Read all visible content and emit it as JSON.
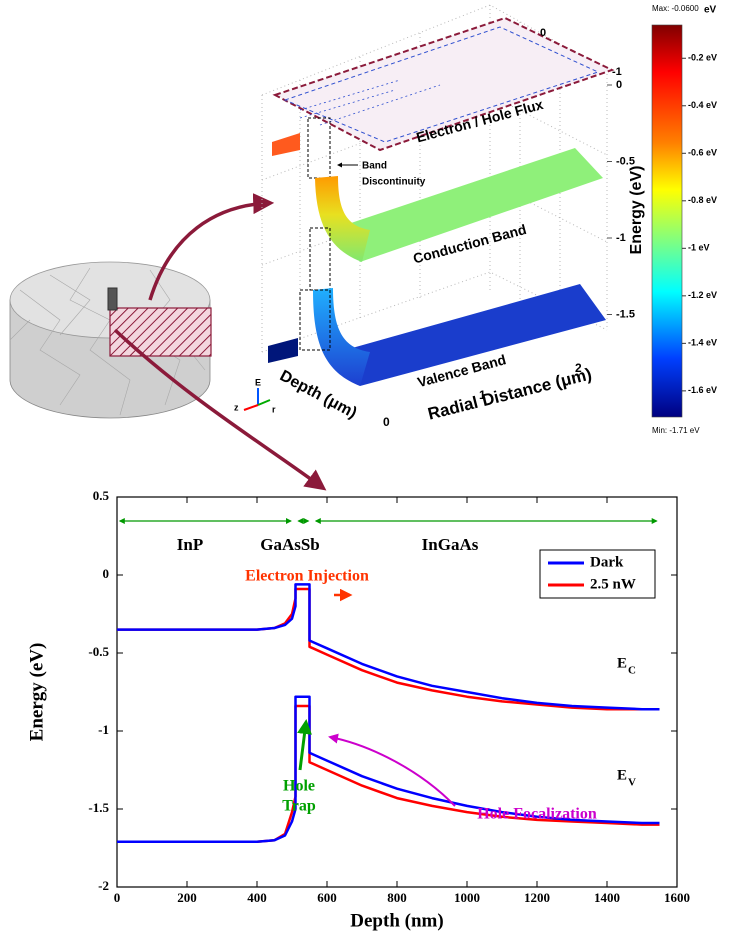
{
  "chart_data": [
    {
      "type": "surface",
      "annotations": {
        "flux": "Electron / Hole Flux",
        "discontinuity": [
          "Band",
          "Discontinuity"
        ],
        "conduction": "Conduction Band",
        "valence": "Valence Band"
      },
      "zlabel": "Energy (eV)",
      "xlabel": "Depth (μm)",
      "ylabel": "Radial Distance (μm)",
      "zticks": [
        0,
        -0.5,
        -1,
        -1.5
      ],
      "xticks": [
        0,
        -1
      ],
      "yticks": [
        0,
        1,
        2
      ],
      "triad": [
        "E",
        "z",
        "r"
      ],
      "colorbar": {
        "clim": [
          -1.71,
          -0.06
        ],
        "max_label": "Max: -0.0600",
        "max_unit": "eV",
        "min_label": "Min: -1.71 eV",
        "ticks": [
          {
            "value": -0.2,
            "label": "-0.2 eV"
          },
          {
            "value": -0.4,
            "label": "-0.4 eV"
          },
          {
            "value": -0.6,
            "label": "-0.6 eV"
          },
          {
            "value": -0.8,
            "label": "-0.8 eV"
          },
          {
            "value": -1,
            "label": "-1 eV"
          },
          {
            "value": -1.2,
            "label": "-1.2 eV"
          },
          {
            "value": -1.4,
            "label": "-1.4 eV"
          },
          {
            "value": -1.6,
            "label": "-1.6 eV"
          }
        ]
      }
    },
    {
      "type": "line",
      "xlabel": "Depth (nm)",
      "ylabel": "Energy (eV)",
      "xlim": [
        0,
        1600
      ],
      "xticks": [
        0,
        200,
        400,
        600,
        800,
        1000,
        1200,
        1400,
        1600
      ],
      "ylim": [
        -2,
        0.5
      ],
      "yticks": [
        -2,
        -1.5,
        -1,
        -0.5,
        0,
        0.5
      ],
      "x": [
        0,
        100,
        200,
        300,
        400,
        450,
        480,
        500,
        510,
        510,
        550,
        550,
        560,
        600,
        700,
        800,
        900,
        1000,
        1100,
        1200,
        1300,
        1400,
        1500,
        1550
      ],
      "series": [
        {
          "name": "Dark",
          "color": "#0000ff",
          "values_ec": [
            -0.35,
            -0.35,
            -0.35,
            -0.35,
            -0.35,
            -0.34,
            -0.32,
            -0.28,
            -0.2,
            -0.06,
            -0.06,
            -0.42,
            -0.43,
            -0.47,
            -0.57,
            -0.65,
            -0.71,
            -0.75,
            -0.79,
            -0.82,
            -0.84,
            -0.85,
            -0.86,
            -0.86
          ],
          "values_ev": [
            -1.71,
            -1.71,
            -1.71,
            -1.71,
            -1.71,
            -1.7,
            -1.67,
            -1.58,
            -1.5,
            -0.78,
            -0.78,
            -1.14,
            -1.15,
            -1.19,
            -1.29,
            -1.37,
            -1.43,
            -1.48,
            -1.52,
            -1.55,
            -1.57,
            -1.58,
            -1.59,
            -1.59
          ]
        },
        {
          "name": "2.5 nW",
          "color": "#ff0000",
          "values_ec": [
            -0.35,
            -0.35,
            -0.35,
            -0.35,
            -0.35,
            -0.34,
            -0.31,
            -0.25,
            -0.15,
            -0.09,
            -0.09,
            -0.46,
            -0.47,
            -0.51,
            -0.61,
            -0.69,
            -0.74,
            -0.78,
            -0.81,
            -0.83,
            -0.85,
            -0.86,
            -0.86,
            -0.86
          ],
          "values_ev": [
            -1.71,
            -1.71,
            -1.71,
            -1.71,
            -1.71,
            -1.7,
            -1.66,
            -1.52,
            -1.42,
            -0.84,
            -0.84,
            -1.2,
            -1.21,
            -1.25,
            -1.35,
            -1.43,
            -1.48,
            -1.52,
            -1.55,
            -1.57,
            -1.58,
            -1.59,
            -1.6,
            -1.6
          ]
        }
      ],
      "legend": "upper right",
      "regions": [
        "InP",
        "GaAsSb",
        "InGaAs"
      ],
      "annotations": {
        "injection": "Electron Injection",
        "trap": [
          "Hole",
          "Trap"
        ],
        "focalization": "Hole Focalization"
      },
      "band_labels": [
        {
          "text": "E",
          "sub": "C"
        },
        {
          "text": "E",
          "sub": "V"
        }
      ]
    }
  ]
}
